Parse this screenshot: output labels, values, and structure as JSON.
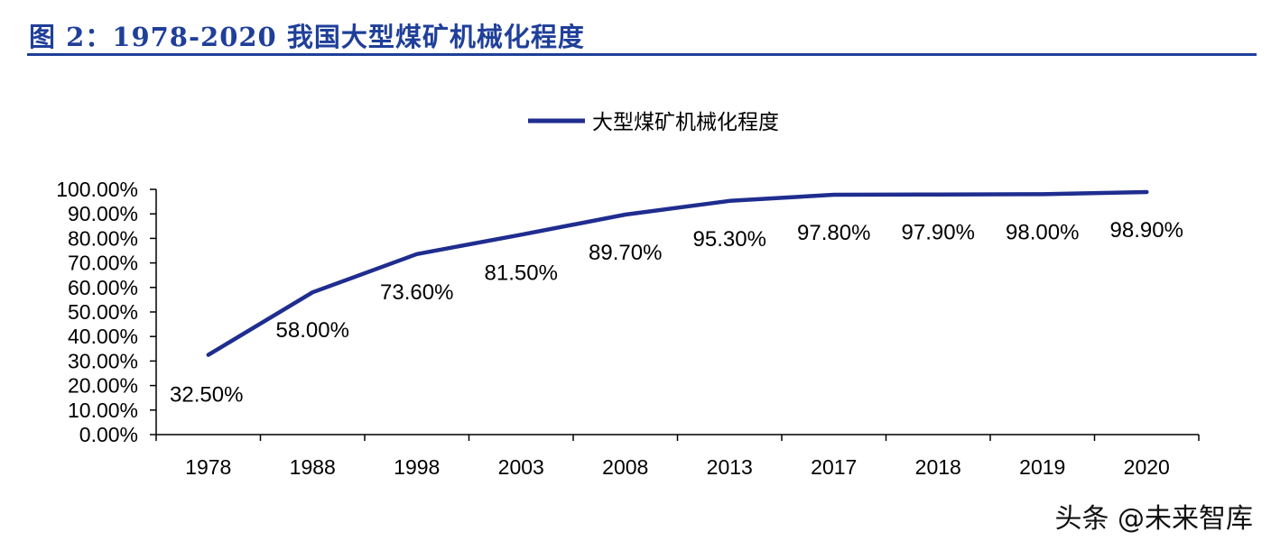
{
  "figure": {
    "title": "图 2：1978-2020 我国大型煤矿机械化程度"
  },
  "watermark": "头条 @未来智库",
  "colors": {
    "series": "#1f2d8f",
    "title": "#1f3f99"
  },
  "chart_data": {
    "type": "line",
    "categories": [
      "1978",
      "1988",
      "1998",
      "2003",
      "2008",
      "2013",
      "2017",
      "2018",
      "2019",
      "2020"
    ],
    "series": [
      {
        "name": "大型煤矿机械化程度",
        "values": [
          32.5,
          58.0,
          73.6,
          81.5,
          89.7,
          95.3,
          97.8,
          97.9,
          98.0,
          98.9
        ],
        "labels": [
          "32.50%",
          "58.00%",
          "73.60%",
          "81.50%",
          "89.70%",
          "95.30%",
          "97.80%",
          "97.90%",
          "98.00%",
          "98.90%"
        ]
      }
    ],
    "y_ticks": [
      "0.00%",
      "10.00%",
      "20.00%",
      "30.00%",
      "40.00%",
      "50.00%",
      "60.00%",
      "70.00%",
      "80.00%",
      "90.00%",
      "100.00%"
    ],
    "ylim": [
      0,
      100
    ],
    "legend": "top-center",
    "grid": false
  }
}
